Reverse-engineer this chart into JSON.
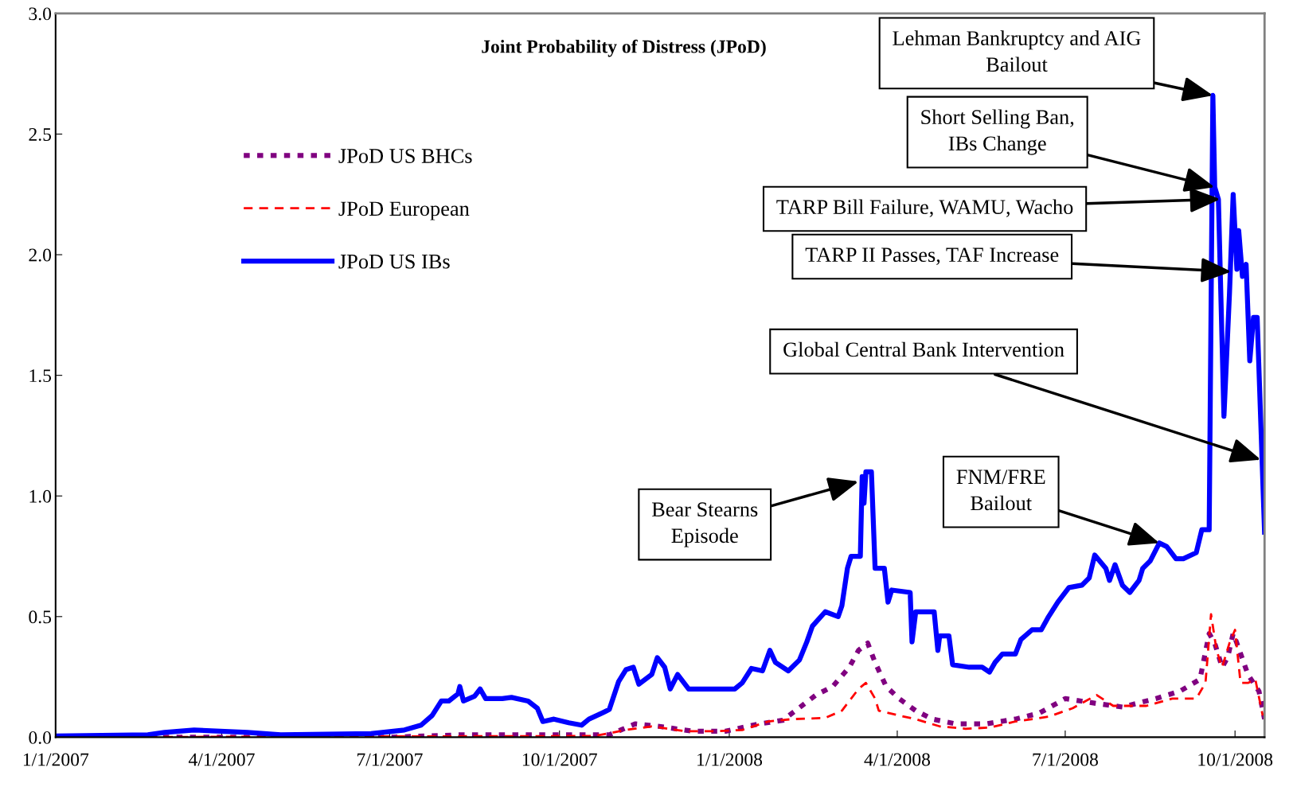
{
  "chart_data": {
    "type": "line",
    "title": "Joint Probability of Distress (JPoD)",
    "xlim": [
      "2007-01-01",
      "2008-10-17"
    ],
    "ylim": [
      0,
      3.0
    ],
    "xticks": [
      {
        "value": "2007-01-01",
        "label": "1/1/2007"
      },
      {
        "value": "2007-04-01",
        "label": "4/1/2007"
      },
      {
        "value": "2007-07-01",
        "label": "7/1/2007"
      },
      {
        "value": "2007-10-01",
        "label": "10/1/2007"
      },
      {
        "value": "2008-01-01",
        "label": "1/1/2008"
      },
      {
        "value": "2008-04-01",
        "label": "4/1/2008"
      },
      {
        "value": "2008-07-01",
        "label": "7/1/2008"
      },
      {
        "value": "2008-10-01",
        "label": "10/1/2008"
      }
    ],
    "yticks": [
      {
        "value": 0,
        "label": "0.0"
      },
      {
        "value": 0.5,
        "label": "0.5"
      },
      {
        "value": 1.0,
        "label": "1.0"
      },
      {
        "value": 1.5,
        "label": "1.5"
      },
      {
        "value": 2.0,
        "label": "2.0"
      },
      {
        "value": 2.5,
        "label": "2.5"
      },
      {
        "value": 3.0,
        "label": "3.0"
      }
    ],
    "grid": false,
    "legend": "upper left",
    "marker": "none",
    "series": [
      {
        "name": "JPoD US BHCs",
        "color": "#800080",
        "line_style": "dashed",
        "x": [
          "2007-01-01",
          "2007-07-01",
          "2007-08-08",
          "2007-08-31",
          "2007-09-19",
          "2007-10-28",
          "2007-11-11",
          "2007-11-24",
          "2007-12-12",
          "2007-12-30",
          "2008-01-17",
          "2008-01-30",
          "2008-02-17",
          "2008-02-26",
          "2008-03-06",
          "2008-03-11",
          "2008-03-16",
          "2008-03-20",
          "2008-03-26",
          "2008-04-02",
          "2008-04-11",
          "2008-04-20",
          "2008-05-03",
          "2008-05-19",
          "2008-06-04",
          "2008-06-17",
          "2008-07-01",
          "2008-07-18",
          "2008-08-01",
          "2008-08-19",
          "2008-09-01",
          "2008-09-12",
          "2008-09-17",
          "2008-09-20",
          "2008-09-24",
          "2008-09-27",
          "2008-09-30",
          "2008-10-02",
          "2008-10-08",
          "2008-10-14",
          "2008-10-17"
        ],
        "values": [
          0.0,
          0.0,
          0.01,
          0.01,
          0.01,
          0.01,
          0.055,
          0.045,
          0.025,
          0.025,
          0.055,
          0.07,
          0.175,
          0.21,
          0.29,
          0.36,
          0.39,
          0.31,
          0.21,
          0.16,
          0.11,
          0.075,
          0.055,
          0.055,
          0.075,
          0.1,
          0.16,
          0.14,
          0.125,
          0.16,
          0.19,
          0.24,
          0.43,
          0.39,
          0.29,
          0.33,
          0.43,
          0.39,
          0.26,
          0.19,
          0.075
        ]
      },
      {
        "name": "JPoD European",
        "color": "#ff0000",
        "line_style": "dashed",
        "x": [
          "2007-01-01",
          "2007-10-20",
          "2007-11-06",
          "2007-11-20",
          "2007-12-08",
          "2007-12-26",
          "2008-01-08",
          "2008-01-22",
          "2008-02-04",
          "2008-02-22",
          "2008-03-02",
          "2008-03-11",
          "2008-03-15",
          "2008-03-20",
          "2008-03-22",
          "2008-04-02",
          "2008-04-11",
          "2008-04-24",
          "2008-05-08",
          "2008-05-21",
          "2008-06-04",
          "2008-06-22",
          "2008-07-05",
          "2008-07-18",
          "2008-07-27",
          "2008-08-14",
          "2008-08-28",
          "2008-09-10",
          "2008-09-15",
          "2008-09-18",
          "2008-09-21",
          "2008-09-24",
          "2008-09-28",
          "2008-10-01",
          "2008-10-04",
          "2008-10-08",
          "2008-10-12",
          "2008-10-16"
        ],
        "values": [
          0.0,
          0.005,
          0.03,
          0.045,
          0.025,
          0.025,
          0.03,
          0.065,
          0.075,
          0.08,
          0.11,
          0.2,
          0.225,
          0.16,
          0.11,
          0.09,
          0.075,
          0.045,
          0.035,
          0.04,
          0.065,
          0.085,
          0.12,
          0.175,
          0.13,
          0.13,
          0.16,
          0.16,
          0.225,
          0.51,
          0.36,
          0.29,
          0.39,
          0.445,
          0.225,
          0.225,
          0.24,
          0.09
        ]
      },
      {
        "name": "JPoD US IBs",
        "color": "#0000ff",
        "line_style": "solid",
        "x": [
          "2007-01-01",
          "2007-02-20",
          "2007-03-01",
          "2007-03-17",
          "2007-04-15",
          "2007-05-03",
          "2007-06-21",
          "2007-07-09",
          "2007-07-18",
          "2007-07-24",
          "2007-07-29",
          "2007-08-02",
          "2007-08-07",
          "2007-08-08",
          "2007-08-10",
          "2007-08-16",
          "2007-08-19",
          "2007-08-22",
          "2007-08-31",
          "2007-09-05",
          "2007-09-14",
          "2007-09-19",
          "2007-09-22",
          "2007-09-28",
          "2007-10-06",
          "2007-10-13",
          "2007-10-17",
          "2007-10-24",
          "2007-10-28",
          "2007-11-02",
          "2007-11-06",
          "2007-11-10",
          "2007-11-13",
          "2007-11-20",
          "2007-11-23",
          "2007-11-27",
          "2007-11-30",
          "2007-12-04",
          "2007-12-10",
          "2008-01-04",
          "2008-01-08",
          "2008-01-13",
          "2008-01-19",
          "2008-01-23",
          "2008-01-26",
          "2008-02-02",
          "2008-02-08",
          "2008-02-12",
          "2008-02-15",
          "2008-02-22",
          "2008-02-29",
          "2008-03-02",
          "2008-03-05",
          "2008-03-07",
          "2008-03-12",
          "2008-03-13",
          "2008-03-14",
          "2008-03-15",
          "2008-03-18",
          "2008-03-20",
          "2008-03-25",
          "2008-03-27",
          "2008-03-29",
          "2008-04-08",
          "2008-04-09",
          "2008-04-11",
          "2008-04-21",
          "2008-04-23",
          "2008-04-24",
          "2008-04-29",
          "2008-05-01",
          "2008-05-10",
          "2008-05-17",
          "2008-05-21",
          "2008-05-24",
          "2008-05-28",
          "2008-06-04",
          "2008-06-07",
          "2008-06-13",
          "2008-06-18",
          "2008-06-22",
          "2008-06-27",
          "2008-07-03",
          "2008-07-10",
          "2008-07-14",
          "2008-07-17",
          "2008-07-23",
          "2008-07-25",
          "2008-07-28",
          "2008-08-01",
          "2008-08-05",
          "2008-08-10",
          "2008-08-12",
          "2008-08-16",
          "2008-08-21",
          "2008-08-25",
          "2008-08-30",
          "2008-09-03",
          "2008-09-10",
          "2008-09-13",
          "2008-09-17",
          "2008-09-19",
          "2008-09-20",
          "2008-09-22",
          "2008-09-25",
          "2008-09-28",
          "2008-09-30",
          "2008-10-02",
          "2008-10-03",
          "2008-10-05",
          "2008-10-07",
          "2008-10-09",
          "2008-10-11",
          "2008-10-13",
          "2008-10-17"
        ],
        "values": [
          0.005,
          0.01,
          0.02,
          0.03,
          0.02,
          0.01,
          0.015,
          0.03,
          0.05,
          0.09,
          0.15,
          0.15,
          0.18,
          0.21,
          0.15,
          0.17,
          0.2,
          0.16,
          0.16,
          0.165,
          0.15,
          0.12,
          0.065,
          0.075,
          0.06,
          0.05,
          0.075,
          0.1,
          0.115,
          0.23,
          0.28,
          0.29,
          0.22,
          0.26,
          0.33,
          0.29,
          0.2,
          0.26,
          0.2,
          0.2,
          0.225,
          0.285,
          0.275,
          0.36,
          0.31,
          0.275,
          0.32,
          0.395,
          0.46,
          0.52,
          0.5,
          0.545,
          0.7,
          0.75,
          0.75,
          1.08,
          0.97,
          1.1,
          1.1,
          0.7,
          0.7,
          0.56,
          0.61,
          0.6,
          0.395,
          0.52,
          0.52,
          0.36,
          0.42,
          0.42,
          0.3,
          0.29,
          0.29,
          0.27,
          0.31,
          0.345,
          0.345,
          0.405,
          0.445,
          0.445,
          0.5,
          0.56,
          0.62,
          0.63,
          0.66,
          0.755,
          0.7,
          0.65,
          0.715,
          0.63,
          0.6,
          0.65,
          0.7,
          0.73,
          0.805,
          0.79,
          0.74,
          0.74,
          0.765,
          0.86,
          0.86,
          2.66,
          2.28,
          2.23,
          1.33,
          1.84,
          2.25,
          1.94,
          2.1,
          1.91,
          1.96,
          1.56,
          1.74,
          1.74,
          0.85
        ]
      }
    ],
    "annotations": [
      {
        "text": "Lehman Bankruptcy and AIG\nBailout",
        "x": "2008-09-19",
        "y": 2.66
      },
      {
        "text": "Short Selling Ban,\nIBs Change",
        "x": "2008-09-20",
        "y": 2.28
      },
      {
        "text": "TARP Bill Failure, WAMU, Wacho",
        "x": "2008-09-23",
        "y": 2.23
      },
      {
        "text": "TARP II Passes, TAF Increase",
        "x": "2008-09-29",
        "y": 1.93
      },
      {
        "text": "Global Central Bank Intervention",
        "x": "2008-10-15",
        "y": 1.15
      },
      {
        "text": "FNM/FRE\nBailout",
        "x": "2008-08-21",
        "y": 0.805
      },
      {
        "text": "Bear Stearns\nEpisode",
        "x": "2008-03-11",
        "y": 1.06
      }
    ]
  }
}
